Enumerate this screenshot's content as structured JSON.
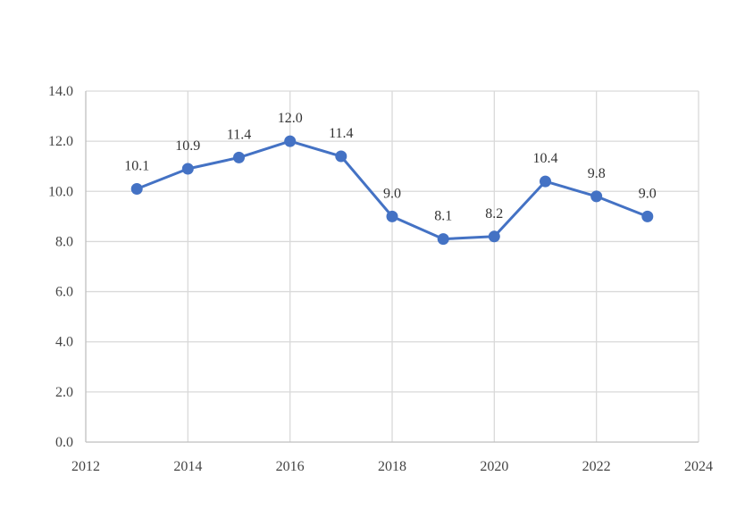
{
  "chart_data": {
    "type": "line",
    "title": "",
    "xlabel": "",
    "ylabel": "",
    "xlim": [
      2012,
      2024
    ],
    "ylim": [
      0,
      14
    ],
    "x_ticks": [
      2012,
      2014,
      2016,
      2018,
      2020,
      2022,
      2024
    ],
    "y_ticks": [
      0,
      2,
      4,
      6,
      8,
      10,
      12,
      14
    ],
    "x_tick_labels": [
      "2012",
      "2014",
      "2016",
      "2018",
      "2020",
      "2022",
      "2024"
    ],
    "y_tick_labels": [
      "0.0",
      "2.0",
      "4.0",
      "6.0",
      "8.0",
      "10.0",
      "12.0",
      "14.0"
    ],
    "grid": true,
    "legend": "none",
    "series": [
      {
        "color": "#4472c4",
        "x": [
          2013,
          2014,
          2015,
          2016,
          2017,
          2018,
          2019,
          2020,
          2021,
          2022,
          2023
        ],
        "values": [
          10.1,
          10.9,
          11.35,
          12.0,
          11.4,
          9.0,
          8.1,
          8.2,
          10.4,
          9.8,
          9.0
        ],
        "labels": [
          "10.1",
          "10.9",
          "11.4",
          "12.0",
          "11.4",
          "9.0",
          "8.1",
          "8.2",
          "10.4",
          "9.8",
          "9.0"
        ]
      }
    ]
  }
}
